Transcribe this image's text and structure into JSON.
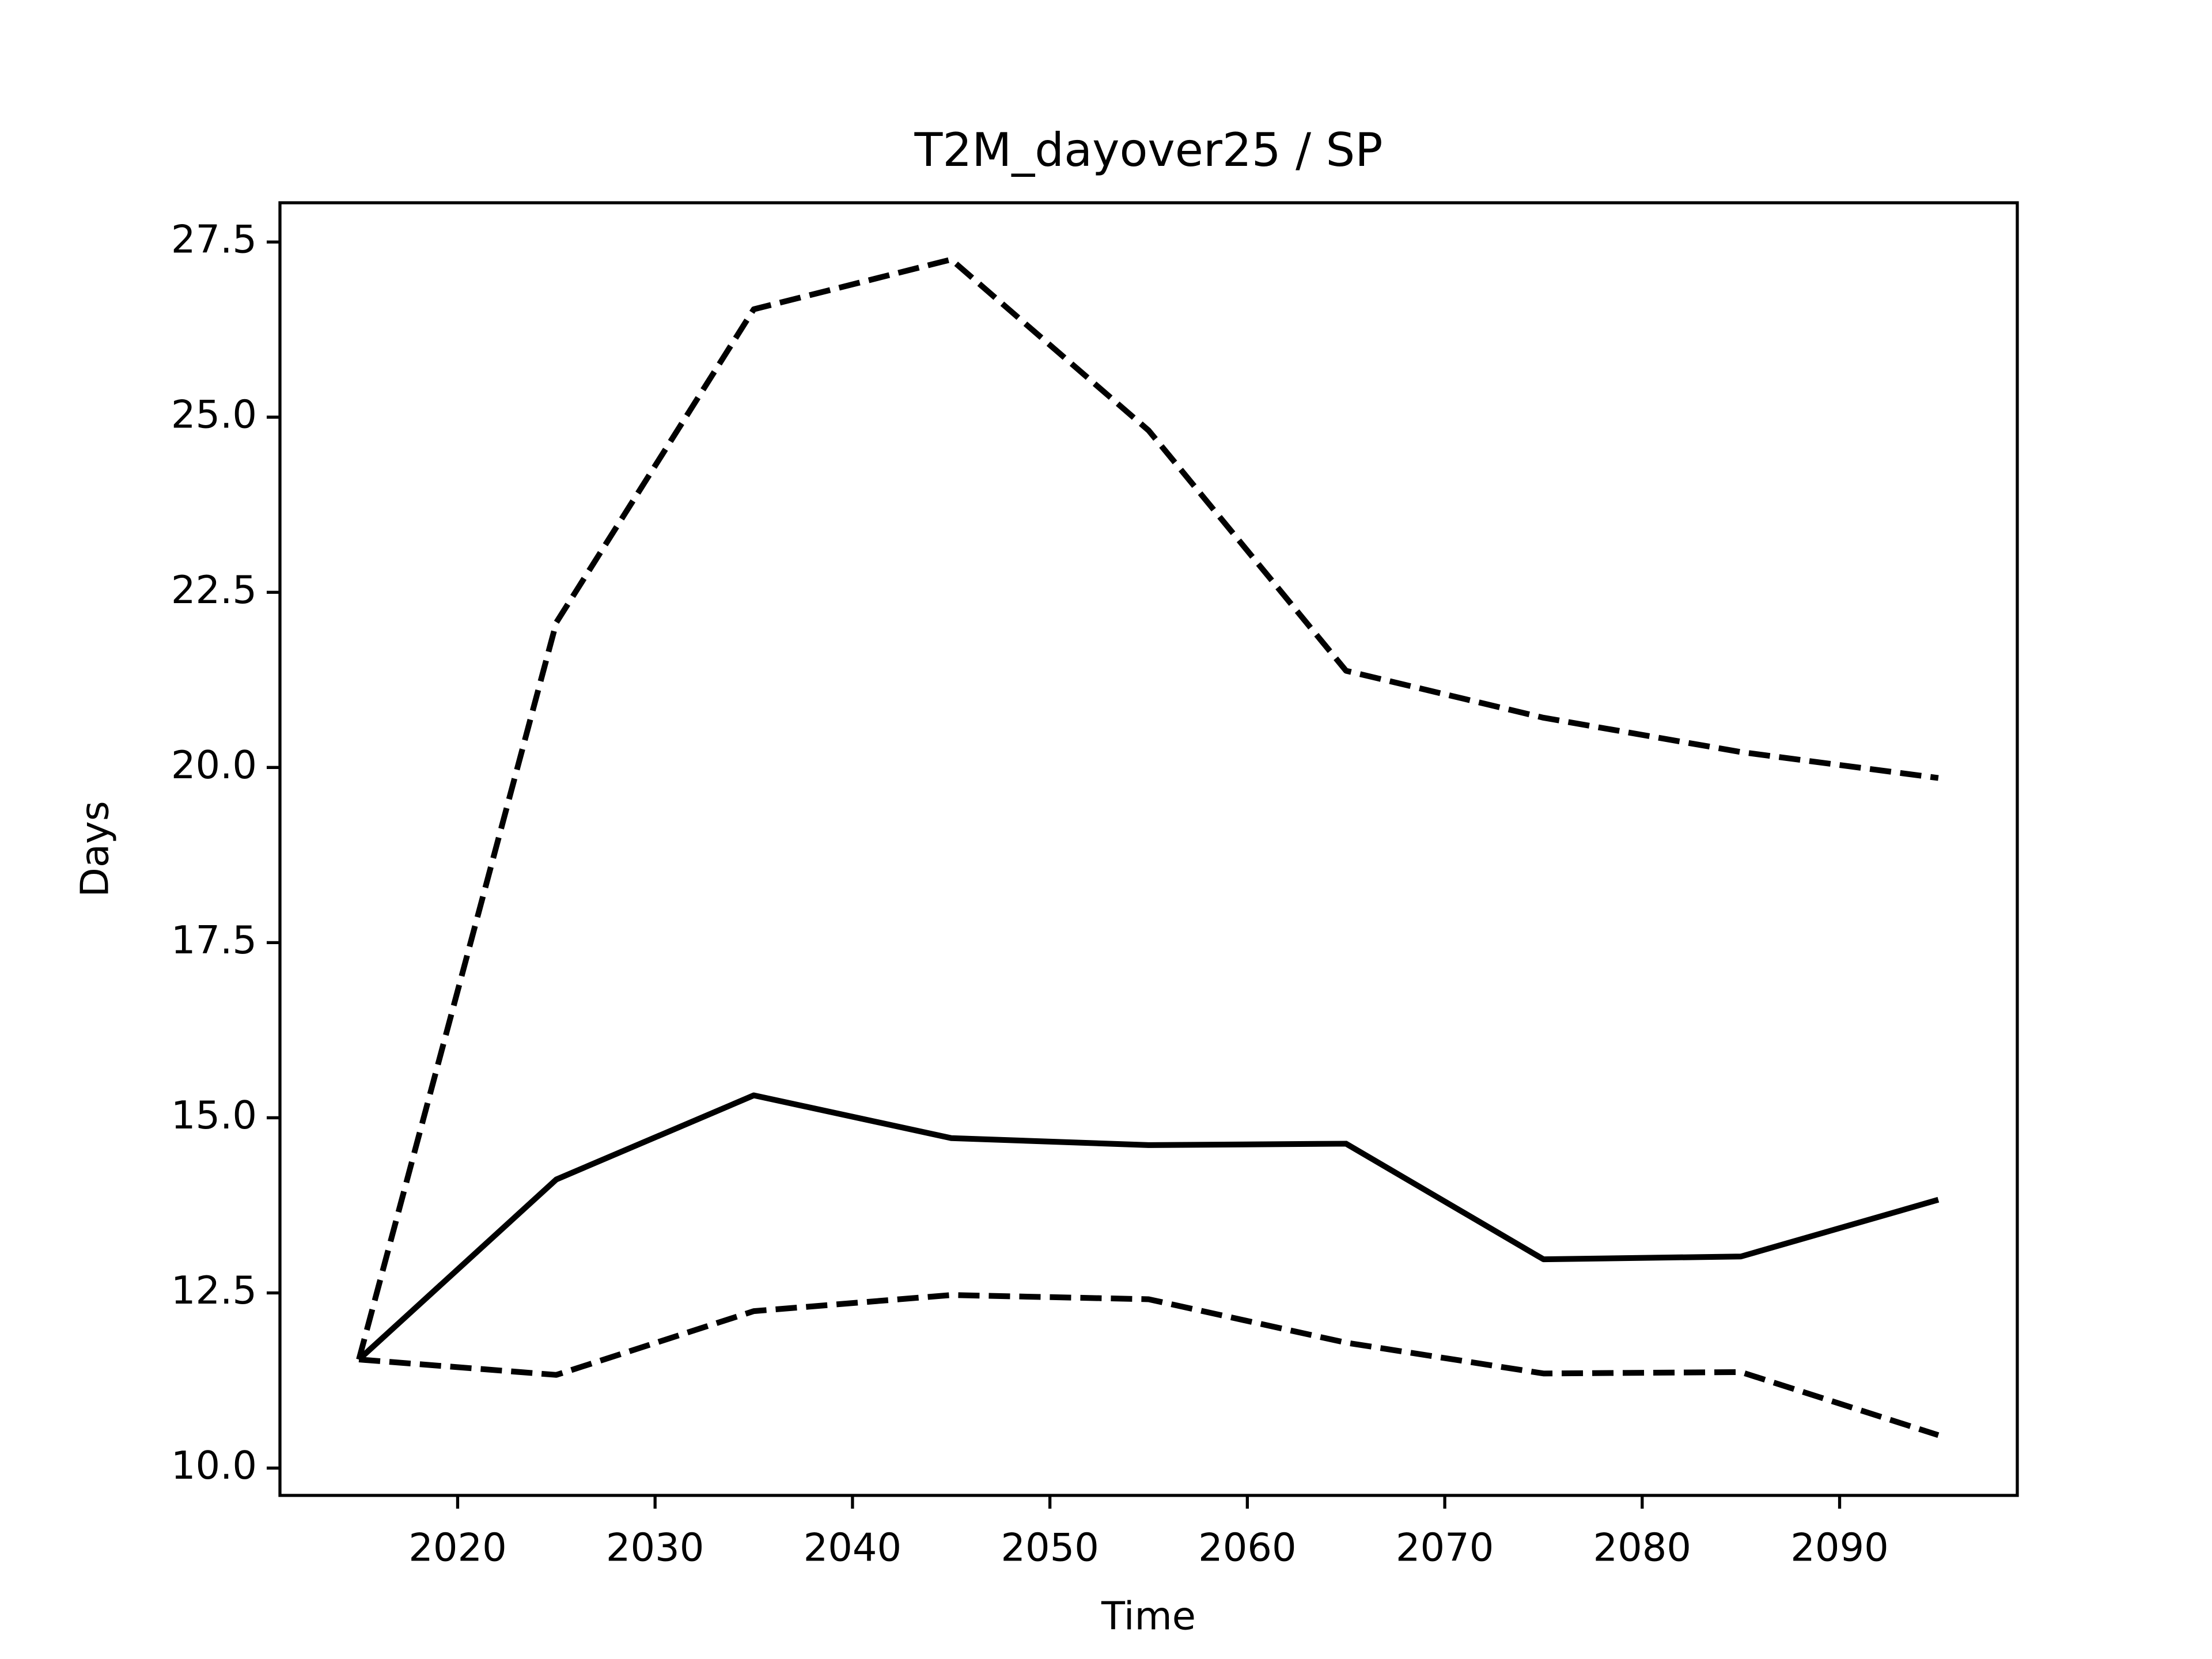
{
  "chart_data": {
    "type": "line",
    "title": "T2M_dayover25 / SP",
    "xlabel": "Time",
    "ylabel": "Days",
    "x": [
      2015,
      2025,
      2035,
      2045,
      2055,
      2065,
      2075,
      2085,
      2095
    ],
    "series": [
      {
        "color": "#000000",
        "linestyle": "solid",
        "values": [
          11.55,
          14.12,
          15.32,
          14.71,
          14.61,
          14.63,
          12.98,
          13.02,
          13.83
        ]
      },
      {
        "color": "#000000",
        "linestyle": "dashed",
        "values": [
          11.55,
          22.07,
          26.54,
          27.25,
          24.81,
          21.38,
          20.71,
          20.22,
          19.85
        ]
      },
      {
        "color": "#000000",
        "linestyle": "dashed",
        "values": [
          11.55,
          11.33,
          12.24,
          12.47,
          12.41,
          11.79,
          11.35,
          11.37,
          10.47
        ]
      }
    ],
    "xlim": [
      2011,
      2099
    ],
    "xticks": [
      2020,
      2030,
      2040,
      2050,
      2060,
      2070,
      2080,
      2090
    ],
    "ylim": [
      9.61,
      28.06
    ],
    "yticks": [
      {
        "value": 10,
        "label": "10.0"
      },
      12.5,
      {
        "value": 15,
        "label": "15.0"
      },
      17.5,
      {
        "value": 20,
        "label": "20.0"
      },
      22.5,
      {
        "value": 25,
        "label": "25.0"
      },
      27.5
    ],
    "grid": false
  }
}
